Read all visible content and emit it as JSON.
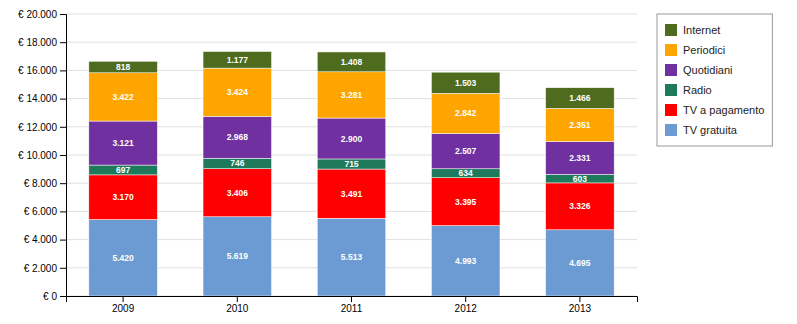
{
  "chart_data": {
    "type": "bar",
    "stacked": true,
    "data_labels": true,
    "grid": true,
    "legend": "right",
    "categories": [
      "2009",
      "2010",
      "2011",
      "2012",
      "2013"
    ],
    "series": [
      {
        "name": "TV gratuita",
        "color": "#6B9BD2",
        "values": [
          5420,
          5619,
          5513,
          4993,
          4695
        ],
        "value_labels": [
          "5.420",
          "5.619",
          "5.513",
          "4.993",
          "4.695"
        ]
      },
      {
        "name": "TV a pagamento",
        "color": "#FF0000",
        "values": [
          3170,
          3406,
          3491,
          3395,
          3326
        ],
        "value_labels": [
          "3.170",
          "3.406",
          "3.491",
          "3.395",
          "3.326"
        ]
      },
      {
        "name": "Radio",
        "color": "#1F7A5C",
        "values": [
          697,
          746,
          715,
          634,
          603
        ],
        "value_labels": [
          "697",
          "746",
          "715",
          "634",
          "603"
        ]
      },
      {
        "name": "Quotidiani",
        "color": "#7030A0",
        "values": [
          3121,
          2968,
          2900,
          2507,
          2331
        ],
        "value_labels": [
          "3.121",
          "2.968",
          "2.900",
          "2.507",
          "2.331"
        ]
      },
      {
        "name": "Periodici",
        "color": "#FFA500",
        "values": [
          3422,
          3424,
          3281,
          2842,
          2351
        ],
        "value_labels": [
          "3.422",
          "3.424",
          "3.281",
          "2.842",
          "2.351"
        ]
      },
      {
        "name": "Internet",
        "color": "#4E6B1E",
        "values": [
          818,
          1177,
          1408,
          1503,
          1466
        ],
        "value_labels": [
          "818",
          "1.177",
          "1.408",
          "1.503",
          "1.466"
        ]
      }
    ],
    "ylim": [
      0,
      20000
    ],
    "yticks": [
      {
        "value": 0,
        "label": "€ 0"
      },
      {
        "value": 2000,
        "label": "€ 2.000"
      },
      {
        "value": 4000,
        "label": "€ 4.000"
      },
      {
        "value": 6000,
        "label": "€ 6.000"
      },
      {
        "value": 8000,
        "label": "€ 8.000"
      },
      {
        "value": 10000,
        "label": "€ 10.000"
      },
      {
        "value": 12000,
        "label": "€ 12.000"
      },
      {
        "value": 14000,
        "label": "€ 14.000"
      },
      {
        "value": 16000,
        "label": "€ 16.000"
      },
      {
        "value": 18000,
        "label": "€ 18.000"
      },
      {
        "value": 20000,
        "label": "€ 20.000"
      }
    ]
  }
}
